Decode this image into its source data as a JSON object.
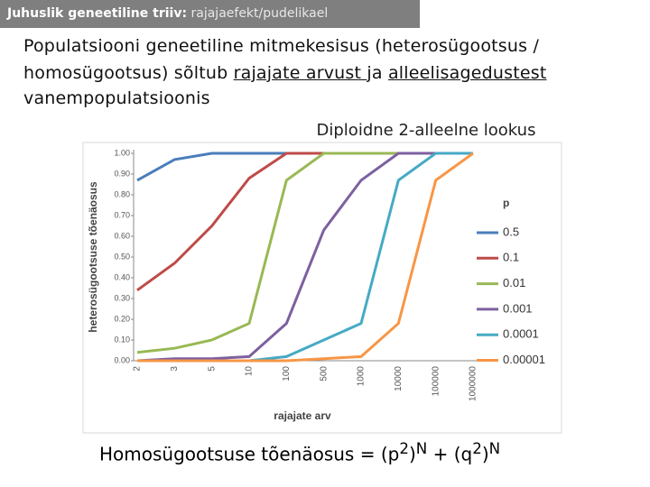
{
  "header": {
    "title": "Juhuslik geneetiline triiv:",
    "subtitle": "rajajaefekt/pudelikael"
  },
  "body": {
    "segments": [
      "Populatsiooni geneetiline mitmekesisus  (heterosügootsus /",
      "homosügootsus) sõltub ",
      "rajajate arvust ",
      "ja ",
      "alleelisagedustest",
      "vanempopulatsioonis"
    ]
  },
  "formula": {
    "parts": [
      "Homosügootsuse tõenäosus = (p",
      "2",
      ")",
      "N",
      " + (q",
      "2",
      ")",
      "N"
    ]
  },
  "chart_data": {
    "type": "line",
    "title": "Diploidne 2-alleelne lookus",
    "x_label": "rajajate arv",
    "y_label": "heterosügootsuse tõenäosus",
    "legend_title": "p",
    "legend_position": "right",
    "categories": [
      "2",
      "3",
      "5",
      "10",
      "100",
      "500",
      "1000",
      "10000",
      "100000",
      "1000000"
    ],
    "ylim": [
      0,
      1
    ],
    "yticks": [
      {
        "value": 0,
        "label": "0.00"
      },
      {
        "value": 0.1,
        "label": "0.10"
      },
      {
        "value": 0.2,
        "label": "0.20"
      },
      {
        "value": 0.3,
        "label": "0.30"
      },
      {
        "value": 0.4,
        "label": "0.40"
      },
      {
        "value": 0.5,
        "label": "0.50"
      },
      {
        "value": 0.6,
        "label": "0.60"
      },
      {
        "value": 0.7,
        "label": "0.70"
      },
      {
        "value": 0.8,
        "label": "0.80"
      },
      {
        "value": 0.9,
        "label": "0.90"
      },
      {
        "value": 1,
        "label": "1.00"
      }
    ],
    "grid": false,
    "series": [
      {
        "name": "0.5",
        "color": "#4a7ebb",
        "values": [
          0.87,
          0.97,
          1,
          1,
          1,
          1,
          1,
          1,
          1,
          1
        ]
      },
      {
        "name": "0.1",
        "color": "#be4b48",
        "values": [
          0.34,
          0.47,
          0.65,
          0.88,
          1,
          1,
          1,
          1,
          1,
          1
        ]
      },
      {
        "name": "0.01",
        "color": "#98b954",
        "values": [
          0.04,
          0.06,
          0.1,
          0.18,
          0.87,
          1,
          1,
          1,
          1,
          1
        ]
      },
      {
        "name": "0.001",
        "color": "#7d60a0",
        "values": [
          0,
          0.01,
          0.01,
          0.02,
          0.18,
          0.63,
          0.87,
          1,
          1,
          1
        ]
      },
      {
        "name": "0.0001",
        "color": "#46aac5",
        "values": [
          0,
          0,
          0,
          0,
          0.02,
          0.1,
          0.18,
          0.87,
          1,
          1
        ]
      },
      {
        "name": "0.00001",
        "color": "#f79646",
        "values": [
          0,
          0,
          0,
          0,
          0,
          0.01,
          0.02,
          0.18,
          0.87,
          1
        ]
      }
    ]
  }
}
